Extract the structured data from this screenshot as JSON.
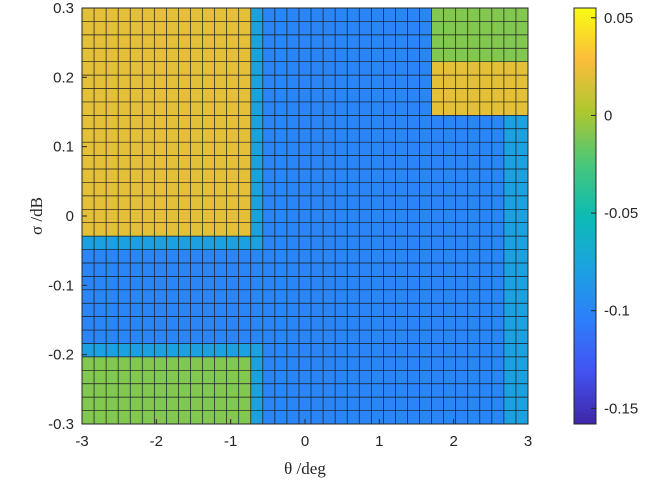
{
  "chart_data": {
    "type": "heatmap",
    "title": "",
    "xlabel": "θ /deg",
    "ylabel": "σ /dB",
    "xlim": [
      -3,
      3
    ],
    "ylim": [
      -0.3,
      0.3
    ],
    "x_ticks": [
      "-3",
      "-2",
      "-1",
      "0",
      "1",
      "2",
      "3"
    ],
    "y_ticks": [
      "0.3",
      "0.2",
      "0.1",
      "0",
      "-0.1",
      "-0.2",
      "-0.3"
    ],
    "colorbar": {
      "limits": [
        -0.158,
        0.055
      ],
      "ticks": [
        "0.05",
        "0",
        "-0.05",
        "-0.1",
        "-0.15"
      ],
      "colormap": "parula"
    },
    "grid_size": {
      "columns": 37,
      "rows": 31
    },
    "grid_lines": true,
    "values": [
      [
        0.02,
        0.02,
        0.02,
        0.02,
        0.02,
        0.02,
        0.02,
        0.02,
        0.02,
        0.02,
        0.02,
        0.02,
        0.02,
        0.02,
        -0.08,
        -0.1,
        -0.1,
        -0.1,
        -0.1,
        -0.1,
        -0.1,
        -0.1,
        -0.1,
        -0.1,
        -0.1,
        -0.1,
        -0.1,
        -0.1,
        -0.1,
        -0.01,
        -0.01,
        -0.01,
        -0.01,
        -0.01,
        -0.01,
        -0.01,
        -0.01
      ],
      [
        0.02,
        0.02,
        0.02,
        0.02,
        0.02,
        0.02,
        0.02,
        0.02,
        0.02,
        0.02,
        0.02,
        0.02,
        0.02,
        0.02,
        -0.08,
        -0.1,
        -0.1,
        -0.1,
        -0.1,
        -0.1,
        -0.1,
        -0.1,
        -0.1,
        -0.1,
        -0.1,
        -0.1,
        -0.1,
        -0.1,
        -0.1,
        -0.01,
        -0.01,
        -0.01,
        -0.01,
        -0.01,
        -0.01,
        -0.01,
        -0.01
      ],
      [
        0.02,
        0.02,
        0.02,
        0.02,
        0.02,
        0.02,
        0.02,
        0.02,
        0.02,
        0.02,
        0.02,
        0.02,
        0.02,
        0.02,
        -0.08,
        -0.1,
        -0.1,
        -0.1,
        -0.1,
        -0.1,
        -0.1,
        -0.1,
        -0.1,
        -0.1,
        -0.1,
        -0.1,
        -0.1,
        -0.1,
        -0.1,
        -0.01,
        -0.01,
        -0.01,
        -0.01,
        -0.01,
        -0.01,
        -0.01,
        -0.01
      ],
      [
        0.02,
        0.02,
        0.02,
        0.02,
        0.02,
        0.02,
        0.02,
        0.02,
        0.02,
        0.02,
        0.02,
        0.02,
        0.02,
        0.02,
        -0.08,
        -0.1,
        -0.1,
        -0.1,
        -0.1,
        -0.1,
        -0.1,
        -0.1,
        -0.1,
        -0.1,
        -0.1,
        -0.1,
        -0.1,
        -0.1,
        -0.1,
        -0.01,
        -0.01,
        -0.01,
        -0.01,
        -0.01,
        -0.01,
        -0.01,
        -0.01
      ],
      [
        0.02,
        0.02,
        0.02,
        0.02,
        0.02,
        0.02,
        0.02,
        0.02,
        0.02,
        0.02,
        0.02,
        0.02,
        0.02,
        0.02,
        -0.08,
        -0.1,
        -0.1,
        -0.1,
        -0.1,
        -0.1,
        -0.1,
        -0.1,
        -0.1,
        -0.1,
        -0.1,
        -0.1,
        -0.1,
        -0.1,
        -0.1,
        0.02,
        0.02,
        0.02,
        0.02,
        0.02,
        0.02,
        0.02,
        0.02
      ],
      [
        0.02,
        0.02,
        0.02,
        0.02,
        0.02,
        0.02,
        0.02,
        0.02,
        0.02,
        0.02,
        0.02,
        0.02,
        0.02,
        0.02,
        -0.08,
        -0.1,
        -0.1,
        -0.1,
        -0.1,
        -0.1,
        -0.1,
        -0.1,
        -0.1,
        -0.1,
        -0.1,
        -0.1,
        -0.1,
        -0.1,
        -0.1,
        0.02,
        0.02,
        0.02,
        0.02,
        0.02,
        0.02,
        0.02,
        0.02
      ],
      [
        0.02,
        0.02,
        0.02,
        0.02,
        0.02,
        0.02,
        0.02,
        0.02,
        0.02,
        0.02,
        0.02,
        0.02,
        0.02,
        0.02,
        -0.08,
        -0.1,
        -0.1,
        -0.1,
        -0.1,
        -0.1,
        -0.1,
        -0.1,
        -0.1,
        -0.1,
        -0.1,
        -0.1,
        -0.1,
        -0.1,
        -0.1,
        0.02,
        0.02,
        0.02,
        0.02,
        0.02,
        0.02,
        0.02,
        0.02
      ],
      [
        0.02,
        0.02,
        0.02,
        0.02,
        0.02,
        0.02,
        0.02,
        0.02,
        0.02,
        0.02,
        0.02,
        0.02,
        0.02,
        0.02,
        -0.08,
        -0.1,
        -0.1,
        -0.1,
        -0.1,
        -0.1,
        -0.1,
        -0.1,
        -0.1,
        -0.1,
        -0.1,
        -0.1,
        -0.1,
        -0.1,
        -0.1,
        0.02,
        0.02,
        0.02,
        0.02,
        0.02,
        0.02,
        0.02,
        0.02
      ],
      [
        0.02,
        0.02,
        0.02,
        0.02,
        0.02,
        0.02,
        0.02,
        0.02,
        0.02,
        0.02,
        0.02,
        0.02,
        0.02,
        0.02,
        -0.08,
        -0.1,
        -0.1,
        -0.1,
        -0.1,
        -0.1,
        -0.1,
        -0.1,
        -0.1,
        -0.1,
        -0.1,
        -0.1,
        -0.1,
        -0.1,
        -0.1,
        -0.1,
        -0.1,
        -0.1,
        -0.1,
        -0.1,
        -0.1,
        -0.08,
        -0.08
      ],
      [
        0.02,
        0.02,
        0.02,
        0.02,
        0.02,
        0.02,
        0.02,
        0.02,
        0.02,
        0.02,
        0.02,
        0.02,
        0.02,
        0.02,
        -0.08,
        -0.1,
        -0.1,
        -0.1,
        -0.1,
        -0.1,
        -0.1,
        -0.1,
        -0.1,
        -0.1,
        -0.1,
        -0.1,
        -0.1,
        -0.1,
        -0.1,
        -0.1,
        -0.1,
        -0.1,
        -0.1,
        -0.1,
        -0.1,
        -0.08,
        -0.08
      ],
      [
        0.02,
        0.02,
        0.02,
        0.02,
        0.02,
        0.02,
        0.02,
        0.02,
        0.02,
        0.02,
        0.02,
        0.02,
        0.02,
        0.02,
        -0.08,
        -0.1,
        -0.1,
        -0.1,
        -0.1,
        -0.1,
        -0.1,
        -0.1,
        -0.1,
        -0.1,
        -0.1,
        -0.1,
        -0.1,
        -0.1,
        -0.1,
        -0.1,
        -0.1,
        -0.1,
        -0.1,
        -0.1,
        -0.1,
        -0.08,
        -0.08
      ],
      [
        0.02,
        0.02,
        0.02,
        0.02,
        0.02,
        0.02,
        0.02,
        0.02,
        0.02,
        0.02,
        0.02,
        0.02,
        0.02,
        0.02,
        -0.08,
        -0.1,
        -0.1,
        -0.1,
        -0.1,
        -0.1,
        -0.1,
        -0.1,
        -0.1,
        -0.1,
        -0.1,
        -0.1,
        -0.1,
        -0.1,
        -0.1,
        -0.1,
        -0.1,
        -0.1,
        -0.1,
        -0.1,
        -0.1,
        -0.08,
        -0.08
      ],
      [
        0.02,
        0.02,
        0.02,
        0.02,
        0.02,
        0.02,
        0.02,
        0.02,
        0.02,
        0.02,
        0.02,
        0.02,
        0.02,
        0.02,
        -0.08,
        -0.1,
        -0.1,
        -0.1,
        -0.1,
        -0.1,
        -0.1,
        -0.1,
        -0.1,
        -0.1,
        -0.1,
        -0.1,
        -0.1,
        -0.1,
        -0.1,
        -0.1,
        -0.1,
        -0.1,
        -0.1,
        -0.1,
        -0.1,
        -0.08,
        -0.08
      ],
      [
        0.02,
        0.02,
        0.02,
        0.02,
        0.02,
        0.02,
        0.02,
        0.02,
        0.02,
        0.02,
        0.02,
        0.02,
        0.02,
        0.02,
        -0.08,
        -0.1,
        -0.1,
        -0.1,
        -0.1,
        -0.1,
        -0.1,
        -0.1,
        -0.1,
        -0.1,
        -0.1,
        -0.1,
        -0.1,
        -0.1,
        -0.1,
        -0.1,
        -0.1,
        -0.1,
        -0.1,
        -0.1,
        -0.1,
        -0.08,
        -0.08
      ],
      [
        0.02,
        0.02,
        0.02,
        0.02,
        0.02,
        0.02,
        0.02,
        0.02,
        0.02,
        0.02,
        0.02,
        0.02,
        0.02,
        0.02,
        -0.08,
        -0.1,
        -0.1,
        -0.1,
        -0.1,
        -0.1,
        -0.1,
        -0.1,
        -0.1,
        -0.1,
        -0.1,
        -0.1,
        -0.1,
        -0.1,
        -0.1,
        -0.1,
        -0.1,
        -0.1,
        -0.1,
        -0.1,
        -0.1,
        -0.08,
        -0.08
      ],
      [
        0.02,
        0.02,
        0.02,
        0.02,
        0.02,
        0.02,
        0.02,
        0.02,
        0.02,
        0.02,
        0.02,
        0.02,
        0.02,
        0.02,
        -0.08,
        -0.1,
        -0.1,
        -0.1,
        -0.1,
        -0.1,
        -0.1,
        -0.1,
        -0.1,
        -0.1,
        -0.1,
        -0.1,
        -0.1,
        -0.1,
        -0.1,
        -0.1,
        -0.1,
        -0.1,
        -0.1,
        -0.1,
        -0.1,
        -0.08,
        -0.08
      ],
      [
        0.02,
        0.02,
        0.02,
        0.02,
        0.02,
        0.02,
        0.02,
        0.02,
        0.02,
        0.02,
        0.02,
        0.02,
        0.02,
        0.02,
        -0.08,
        -0.1,
        -0.1,
        -0.1,
        -0.1,
        -0.1,
        -0.1,
        -0.1,
        -0.1,
        -0.1,
        -0.1,
        -0.1,
        -0.1,
        -0.1,
        -0.1,
        -0.1,
        -0.1,
        -0.1,
        -0.1,
        -0.1,
        -0.1,
        -0.08,
        -0.08
      ],
      [
        -0.08,
        -0.08,
        -0.08,
        -0.08,
        -0.08,
        -0.08,
        -0.08,
        -0.08,
        -0.08,
        -0.08,
        -0.08,
        -0.08,
        -0.08,
        -0.08,
        -0.08,
        -0.1,
        -0.1,
        -0.1,
        -0.1,
        -0.1,
        -0.1,
        -0.1,
        -0.1,
        -0.1,
        -0.1,
        -0.1,
        -0.1,
        -0.1,
        -0.1,
        -0.1,
        -0.1,
        -0.1,
        -0.1,
        -0.1,
        -0.1,
        -0.08,
        -0.08
      ],
      [
        -0.1,
        -0.1,
        -0.1,
        -0.1,
        -0.1,
        -0.1,
        -0.1,
        -0.1,
        -0.1,
        -0.1,
        -0.1,
        -0.1,
        -0.1,
        -0.1,
        -0.1,
        -0.1,
        -0.1,
        -0.1,
        -0.1,
        -0.1,
        -0.1,
        -0.1,
        -0.1,
        -0.1,
        -0.1,
        -0.1,
        -0.1,
        -0.1,
        -0.1,
        -0.1,
        -0.1,
        -0.1,
        -0.1,
        -0.1,
        -0.1,
        -0.08,
        -0.08
      ],
      [
        -0.1,
        -0.1,
        -0.1,
        -0.1,
        -0.1,
        -0.1,
        -0.1,
        -0.1,
        -0.1,
        -0.1,
        -0.1,
        -0.1,
        -0.1,
        -0.1,
        -0.1,
        -0.1,
        -0.1,
        -0.1,
        -0.1,
        -0.1,
        -0.1,
        -0.1,
        -0.1,
        -0.1,
        -0.1,
        -0.1,
        -0.1,
        -0.1,
        -0.1,
        -0.1,
        -0.1,
        -0.1,
        -0.1,
        -0.1,
        -0.1,
        -0.08,
        -0.08
      ],
      [
        -0.1,
        -0.1,
        -0.1,
        -0.1,
        -0.1,
        -0.1,
        -0.1,
        -0.1,
        -0.1,
        -0.1,
        -0.1,
        -0.1,
        -0.1,
        -0.1,
        -0.1,
        -0.1,
        -0.1,
        -0.1,
        -0.1,
        -0.1,
        -0.1,
        -0.1,
        -0.1,
        -0.1,
        -0.1,
        -0.1,
        -0.1,
        -0.1,
        -0.1,
        -0.1,
        -0.1,
        -0.1,
        -0.1,
        -0.1,
        -0.1,
        -0.08,
        -0.08
      ],
      [
        -0.1,
        -0.1,
        -0.1,
        -0.1,
        -0.1,
        -0.1,
        -0.1,
        -0.1,
        -0.1,
        -0.1,
        -0.1,
        -0.1,
        -0.1,
        -0.1,
        -0.1,
        -0.1,
        -0.1,
        -0.1,
        -0.1,
        -0.1,
        -0.1,
        -0.1,
        -0.1,
        -0.1,
        -0.1,
        -0.1,
        -0.1,
        -0.1,
        -0.1,
        -0.1,
        -0.1,
        -0.1,
        -0.1,
        -0.1,
        -0.1,
        -0.08,
        -0.08
      ],
      [
        -0.1,
        -0.1,
        -0.1,
        -0.1,
        -0.1,
        -0.1,
        -0.1,
        -0.1,
        -0.1,
        -0.1,
        -0.1,
        -0.1,
        -0.1,
        -0.1,
        -0.1,
        -0.1,
        -0.1,
        -0.1,
        -0.1,
        -0.1,
        -0.1,
        -0.1,
        -0.1,
        -0.1,
        -0.1,
        -0.1,
        -0.1,
        -0.1,
        -0.1,
        -0.1,
        -0.1,
        -0.1,
        -0.1,
        -0.1,
        -0.1,
        -0.08,
        -0.08
      ],
      [
        -0.1,
        -0.1,
        -0.1,
        -0.1,
        -0.1,
        -0.1,
        -0.1,
        -0.1,
        -0.1,
        -0.1,
        -0.1,
        -0.1,
        -0.1,
        -0.1,
        -0.1,
        -0.1,
        -0.1,
        -0.1,
        -0.1,
        -0.1,
        -0.1,
        -0.1,
        -0.1,
        -0.1,
        -0.1,
        -0.1,
        -0.1,
        -0.1,
        -0.1,
        -0.1,
        -0.1,
        -0.1,
        -0.1,
        -0.1,
        -0.1,
        -0.08,
        -0.08
      ],
      [
        -0.1,
        -0.1,
        -0.1,
        -0.1,
        -0.1,
        -0.1,
        -0.1,
        -0.1,
        -0.1,
        -0.1,
        -0.1,
        -0.1,
        -0.1,
        -0.1,
        -0.1,
        -0.1,
        -0.1,
        -0.1,
        -0.1,
        -0.1,
        -0.1,
        -0.1,
        -0.1,
        -0.1,
        -0.1,
        -0.1,
        -0.1,
        -0.1,
        -0.1,
        -0.1,
        -0.1,
        -0.1,
        -0.1,
        -0.1,
        -0.1,
        -0.08,
        -0.08
      ],
      [
        -0.08,
        -0.08,
        -0.08,
        -0.08,
        -0.08,
        -0.08,
        -0.08,
        -0.08,
        -0.08,
        -0.08,
        -0.08,
        -0.08,
        -0.08,
        -0.08,
        -0.08,
        -0.1,
        -0.1,
        -0.1,
        -0.1,
        -0.1,
        -0.1,
        -0.1,
        -0.1,
        -0.1,
        -0.1,
        -0.1,
        -0.1,
        -0.1,
        -0.1,
        -0.1,
        -0.1,
        -0.1,
        -0.1,
        -0.1,
        -0.1,
        -0.08,
        -0.08
      ],
      [
        -0.01,
        -0.01,
        -0.01,
        -0.01,
        -0.01,
        -0.01,
        -0.01,
        -0.01,
        -0.01,
        -0.01,
        -0.01,
        -0.01,
        -0.01,
        -0.01,
        -0.08,
        -0.1,
        -0.1,
        -0.1,
        -0.1,
        -0.1,
        -0.1,
        -0.1,
        -0.1,
        -0.1,
        -0.1,
        -0.1,
        -0.1,
        -0.1,
        -0.1,
        -0.1,
        -0.1,
        -0.1,
        -0.1,
        -0.1,
        -0.1,
        -0.08,
        -0.08
      ],
      [
        -0.01,
        -0.01,
        -0.01,
        -0.01,
        -0.01,
        -0.01,
        -0.01,
        -0.01,
        -0.01,
        -0.01,
        -0.01,
        -0.01,
        -0.01,
        -0.01,
        -0.08,
        -0.1,
        -0.1,
        -0.1,
        -0.1,
        -0.1,
        -0.1,
        -0.1,
        -0.1,
        -0.1,
        -0.1,
        -0.1,
        -0.1,
        -0.1,
        -0.1,
        -0.1,
        -0.1,
        -0.1,
        -0.1,
        -0.1,
        -0.1,
        -0.08,
        -0.08
      ],
      [
        -0.01,
        -0.01,
        -0.01,
        -0.01,
        -0.01,
        -0.01,
        -0.01,
        -0.01,
        -0.01,
        -0.01,
        -0.01,
        -0.01,
        -0.01,
        -0.01,
        -0.08,
        -0.1,
        -0.1,
        -0.1,
        -0.1,
        -0.1,
        -0.1,
        -0.1,
        -0.1,
        -0.1,
        -0.1,
        -0.1,
        -0.1,
        -0.1,
        -0.1,
        -0.1,
        -0.1,
        -0.1,
        -0.1,
        -0.1,
        -0.1,
        -0.08,
        -0.08
      ],
      [
        -0.01,
        -0.01,
        -0.01,
        -0.01,
        -0.01,
        -0.01,
        -0.01,
        -0.01,
        -0.01,
        -0.01,
        -0.01,
        -0.01,
        -0.01,
        -0.01,
        -0.08,
        -0.1,
        -0.1,
        -0.1,
        -0.1,
        -0.1,
        -0.1,
        -0.1,
        -0.1,
        -0.1,
        -0.1,
        -0.1,
        -0.1,
        -0.1,
        -0.1,
        -0.1,
        -0.1,
        -0.1,
        -0.1,
        -0.1,
        -0.1,
        -0.08,
        -0.08
      ],
      [
        -0.01,
        -0.01,
        -0.01,
        -0.01,
        -0.01,
        -0.01,
        -0.01,
        -0.01,
        -0.01,
        -0.01,
        -0.01,
        -0.01,
        -0.01,
        -0.01,
        -0.08,
        -0.1,
        -0.1,
        -0.1,
        -0.1,
        -0.1,
        -0.1,
        -0.1,
        -0.1,
        -0.1,
        -0.1,
        -0.1,
        -0.1,
        -0.1,
        -0.1,
        -0.1,
        -0.1,
        -0.1,
        -0.1,
        -0.1,
        -0.1,
        -0.08,
        -0.08
      ]
    ]
  }
}
